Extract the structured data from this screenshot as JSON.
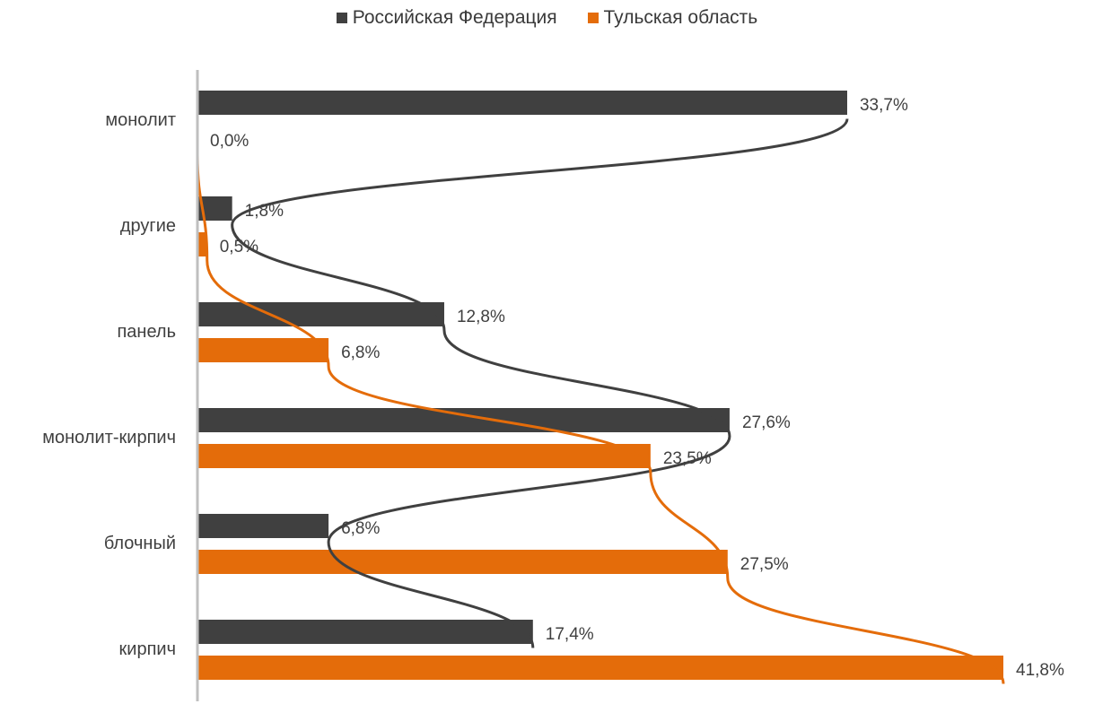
{
  "colors": {
    "rf": "#404040",
    "tula": "#E46C0A",
    "axis": "#bfbfbf",
    "text": "#404040"
  },
  "legend": [
    {
      "label": "Российская Федерация",
      "color": "#404040"
    },
    {
      "label": "Тульская область",
      "color": "#E46C0A"
    }
  ],
  "chart_data": {
    "type": "bar",
    "orientation": "horizontal",
    "categories": [
      "монолит",
      "другие",
      "панель",
      "монолит-кирпич",
      "блочный",
      "кирпич"
    ],
    "series": [
      {
        "name": "Российская Федерация",
        "color": "#404040",
        "values": [
          33.7,
          1.8,
          12.8,
          27.6,
          6.8,
          17.4
        ],
        "labels": [
          "33,7%",
          "1,8%",
          "12,8%",
          "27,6%",
          "6,8%",
          "17,4%"
        ]
      },
      {
        "name": "Тульская область",
        "color": "#E46C0A",
        "values": [
          0.0,
          0.5,
          6.8,
          23.5,
          27.5,
          41.8
        ],
        "labels": [
          "0,0%",
          "0,5%",
          "6,8%",
          "23,5%",
          "27,5%",
          "41,8%"
        ]
      }
    ],
    "xlim": [
      0,
      41.8
    ],
    "legend_position": "top",
    "grid": false,
    "annotations": "hand-drawn curves connecting the values of each series"
  }
}
